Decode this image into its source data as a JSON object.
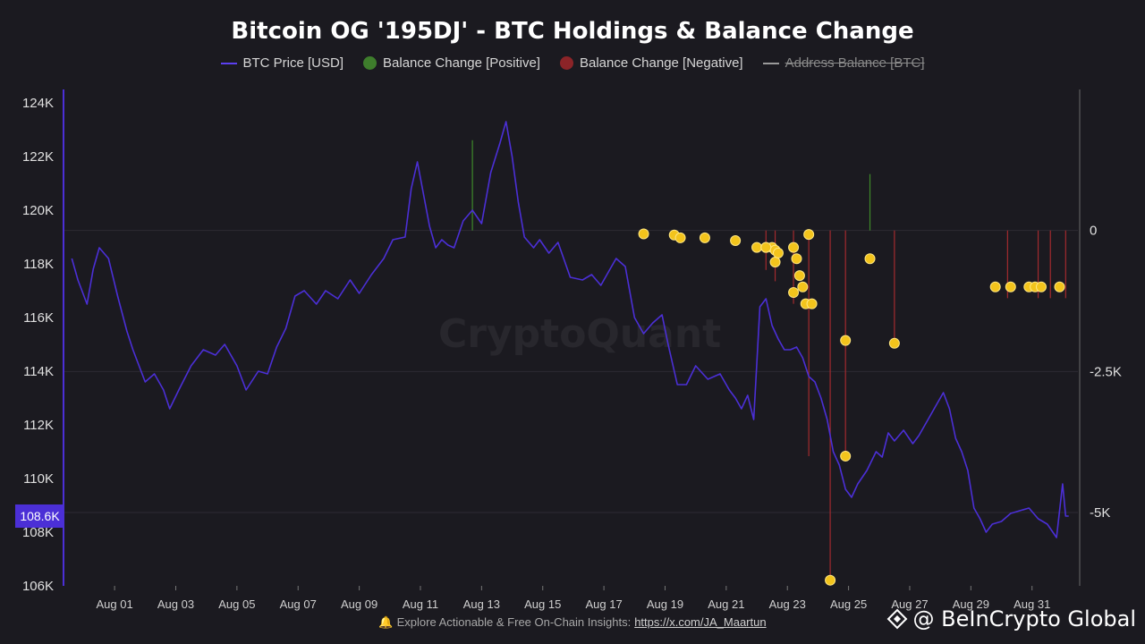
{
  "chart_data": {
    "type": "line",
    "title": "Bitcoin OG '195DJ' - BTC Holdings & Balance Change",
    "legend": [
      {
        "label": "BTC Price [USD]",
        "kind": "line",
        "color": "#5b3ff0",
        "struck": false
      },
      {
        "label": "Balance Change [Positive]",
        "kind": "dot",
        "color": "#3e7d2c",
        "struck": false
      },
      {
        "label": "Balance Change [Negative]",
        "kind": "dot",
        "color": "#8c2428",
        "struck": false
      },
      {
        "label": "Address Balance [BTC]",
        "kind": "line",
        "color": "#9a9a9a",
        "struck": true
      }
    ],
    "x_tick_labels": [
      "Aug 01",
      "Aug 03",
      "Aug 05",
      "Aug 07",
      "Aug 09",
      "Aug 11",
      "Aug 13",
      "Aug 15",
      "Aug 17",
      "Aug 19",
      "Aug 21",
      "Aug 23",
      "Aug 25",
      "Aug 27",
      "Aug 29",
      "Aug 31"
    ],
    "x_tick_days": [
      1,
      3,
      5,
      7,
      9,
      11,
      13,
      15,
      17,
      19,
      21,
      23,
      25,
      27,
      29,
      31
    ],
    "x_range_days": [
      -0.7,
      32.5
    ],
    "left_axis": {
      "ticks": [
        106000,
        108000,
        110000,
        112000,
        114000,
        116000,
        118000,
        120000,
        122000,
        124000
      ],
      "tick_labels": [
        "106K",
        "108K",
        "110K",
        "112K",
        "114K",
        "116K",
        "118K",
        "120K",
        "122K",
        "124K"
      ],
      "range": [
        106000,
        124500
      ]
    },
    "right_axis": {
      "ticks": [
        0,
        -2500,
        -5000
      ],
      "tick_labels": [
        "0",
        "-2.5K",
        "-5K"
      ],
      "range": [
        -6300,
        2500
      ]
    },
    "current_price_label": "108.6K",
    "current_price": 108600,
    "colors": {
      "price": "#4b2fd6",
      "positive": "#3e8a2a",
      "negative": "#a22a2e",
      "dot_fill": "#f3c41c",
      "dot_stroke": "#ffe680"
    },
    "price_series_days": [
      -0.4,
      -0.2,
      0.1,
      0.3,
      0.5,
      0.8,
      1.1,
      1.4,
      1.6,
      2.0,
      2.3,
      2.6,
      2.8,
      3.1,
      3.5,
      3.9,
      4.3,
      4.6,
      5.0,
      5.3,
      5.7,
      6.0,
      6.3,
      6.6,
      6.9,
      7.2,
      7.6,
      7.9,
      8.3,
      8.7,
      9.0,
      9.4,
      9.8,
      10.1,
      10.5,
      10.7,
      10.9,
      11.1,
      11.3,
      11.5,
      11.7,
      11.9,
      12.1,
      12.4,
      12.7,
      13.0,
      13.3,
      13.6,
      13.8,
      14.0,
      14.2,
      14.4,
      14.7,
      14.9,
      15.2,
      15.5,
      15.9,
      16.3,
      16.6,
      16.9,
      17.2,
      17.4,
      17.7,
      18.0,
      18.3,
      18.6,
      18.9,
      19.1,
      19.4,
      19.7,
      20.0,
      20.4,
      20.8,
      21.1,
      21.3,
      21.5,
      21.7,
      21.9,
      22.1,
      22.3,
      22.5,
      22.7,
      22.9,
      23.1,
      23.3,
      23.5,
      23.7,
      23.9,
      24.1,
      24.3,
      24.5,
      24.7,
      24.9,
      25.1,
      25.3,
      25.6,
      25.9,
      26.1,
      26.3,
      26.5,
      26.8,
      27.1,
      27.3,
      27.6,
      27.9,
      28.1,
      28.3,
      28.5,
      28.7,
      28.9,
      29.1,
      29.3,
      29.5,
      29.7,
      30.0,
      30.3,
      30.6,
      30.9,
      31.2,
      31.5,
      31.8,
      32.0,
      32.1,
      32.2
    ],
    "price_series_values": [
      118200,
      117400,
      116500,
      117800,
      118600,
      118200,
      116800,
      115500,
      114800,
      113600,
      113900,
      113300,
      112600,
      113300,
      114200,
      114800,
      114600,
      115000,
      114200,
      113300,
      114000,
      113900,
      114900,
      115600,
      116800,
      117000,
      116500,
      117000,
      116700,
      117400,
      116900,
      117600,
      118200,
      118900,
      119000,
      120800,
      121800,
      120600,
      119400,
      118600,
      118900,
      118700,
      118600,
      119600,
      120000,
      119500,
      121400,
      122500,
      123300,
      122000,
      120300,
      119000,
      118600,
      118900,
      118400,
      118800,
      117500,
      117400,
      117600,
      117200,
      117800,
      118200,
      117900,
      116000,
      115400,
      115800,
      116100,
      115000,
      113500,
      113500,
      114200,
      113700,
      113900,
      113300,
      113000,
      112600,
      113100,
      112200,
      116400,
      116700,
      115700,
      115200,
      114800,
      114800,
      114900,
      114500,
      113800,
      113600,
      113000,
      112200,
      111000,
      110500,
      109600,
      109300,
      109800,
      110300,
      111000,
      110800,
      111700,
      111400,
      111800,
      111300,
      111600,
      112200,
      112800,
      113200,
      112600,
      111500,
      111000,
      110300,
      108900,
      108500,
      108000,
      108300,
      108400,
      108700,
      108800,
      108900,
      108500,
      108300,
      107800,
      109800,
      108600,
      108600
    ],
    "positive_changes_days": [
      12.7,
      25.7
    ],
    "positive_changes_values": [
      1600,
      1000
    ],
    "negative_changes_days": [
      22.3,
      22.6,
      23.2,
      23.7,
      24.4,
      24.9,
      26.5,
      30.2,
      31.2,
      31.6,
      32.1
    ],
    "negative_changes_values": [
      -700,
      -900,
      -1300,
      -4000,
      -6200,
      -4000,
      -2000,
      -1200,
      -1200,
      -1200,
      -1200
    ],
    "balance_dots_days": [
      18.3,
      19.3,
      19.5,
      20.3,
      21.3,
      22.0,
      22.3,
      22.5,
      22.6,
      22.6,
      22.7,
      22.3,
      23.2,
      23.3,
      23.4,
      23.5,
      23.2,
      23.6,
      23.7,
      23.8,
      24.4,
      24.9,
      24.9,
      25.7,
      26.5,
      29.8,
      30.3,
      30.9,
      31.1,
      31.3,
      31.9
    ],
    "balance_dots_values": [
      -60,
      -80,
      -130,
      -130,
      -180,
      -300,
      -300,
      -300,
      -350,
      -560,
      -400,
      -300,
      -300,
      -500,
      -800,
      -1000,
      -1100,
      -1300,
      -70,
      -1300,
      -6200,
      -1950,
      -4000,
      -500,
      -2000,
      -1000,
      -1000,
      -1000,
      -1000,
      -1000,
      -1000
    ]
  },
  "footer": {
    "bell": "🔔",
    "text": "Explore Actionable & Free On-Chain Insights:",
    "link": "https://x.com/JA_Maartun"
  },
  "watermark": {
    "brand": "@ BeInCrypto Global",
    "center": "CryptoQuant"
  }
}
